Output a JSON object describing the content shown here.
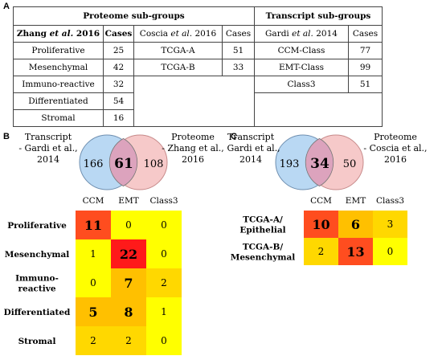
{
  "panels": {
    "a": "A",
    "b": "B",
    "c": "C"
  },
  "table": {
    "proteome_header": "Proteome sub-groups",
    "transcript_header": "Transcript sub-groups",
    "zhang": {
      "author": "Zhang",
      "etal": "et al.",
      "year": "2016",
      "cases_label": "Cases",
      "rows": [
        {
          "name": "Proliferative",
          "cases": "25"
        },
        {
          "name": "Mesenchymal",
          "cases": "42"
        },
        {
          "name": "Immuno-reactive",
          "cases": "32"
        },
        {
          "name": "Differentiated",
          "cases": "54"
        },
        {
          "name": "Stromal",
          "cases": "16"
        }
      ]
    },
    "coscia": {
      "author": "Coscia",
      "etal": "et al.",
      "year": "2016",
      "cases_label": "Cases",
      "rows": [
        {
          "name": "TCGA-A",
          "cases": "51"
        },
        {
          "name": "TCGA-B",
          "cases": "33"
        }
      ]
    },
    "gardi": {
      "author": "Gardi",
      "etal": "et al.",
      "year": "2014",
      "cases_label": "Cases",
      "rows": [
        {
          "name": "CCM-Class",
          "cases": "77"
        },
        {
          "name": "EMT-Class",
          "cases": "99"
        },
        {
          "name": "Class3",
          "cases": "51"
        }
      ]
    }
  },
  "venn_b": {
    "left_label": [
      "Transcript",
      "- Gardi et al.,",
      "2014"
    ],
    "right_label": [
      "Proteome",
      "- Zhang et al.,",
      "2016"
    ],
    "left_only": "166",
    "overlap": "61",
    "right_only": "108"
  },
  "venn_c": {
    "left_label": [
      "Transcript",
      "- Gardi et al.,",
      "2014"
    ],
    "right_label": [
      "Proteome",
      "- Coscia et al.,",
      "2016"
    ],
    "left_only": "193",
    "overlap": "34",
    "right_only": "50"
  },
  "colors": {
    "venn_left": "#b9d8f3",
    "venn_right": "#f6c9c9",
    "venn_overlap": "#dca3bd",
    "heat_low": "#ffff00",
    "heat_mid": "#ffc000",
    "heat_high": "#ff4d1f",
    "heat_max": "#ff1a1a"
  },
  "chart_data": [
    {
      "type": "heatmap",
      "columns": [
        "CCM",
        "EMT",
        "Class3"
      ],
      "rows": [
        "Proliferative",
        "Mesenchymal",
        "Immuno-\nreactive",
        "Differentiated",
        "Stromal"
      ],
      "values": [
        [
          11,
          0,
          0
        ],
        [
          1,
          22,
          0
        ],
        [
          0,
          7,
          2
        ],
        [
          5,
          8,
          1
        ],
        [
          2,
          2,
          0
        ]
      ]
    },
    {
      "type": "heatmap",
      "columns": [
        "CCM",
        "EMT",
        "Class3"
      ],
      "rows": [
        "TCGA-A/\nEpithelial",
        "TCGA-B/\nMesenchymal"
      ],
      "values": [
        [
          10,
          6,
          3
        ],
        [
          2,
          13,
          0
        ]
      ]
    }
  ]
}
